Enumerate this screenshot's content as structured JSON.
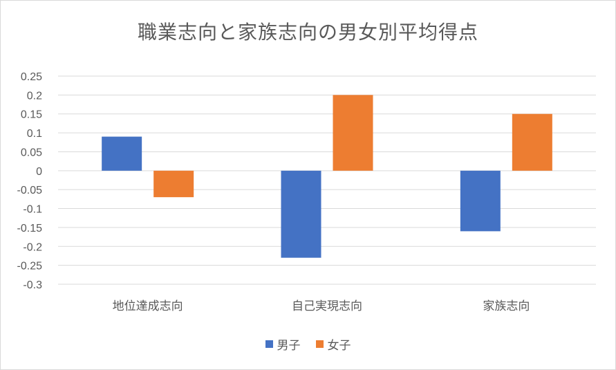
{
  "chart_data": {
    "type": "bar",
    "title": "職業志向と家族志向の男女別平均得点",
    "xlabel": "",
    "ylabel": "",
    "categories": [
      "地位達成志向",
      "自己実現志向",
      "家族志向"
    ],
    "series": [
      {
        "name": "男子",
        "color": "#4472c4",
        "values": [
          0.09,
          -0.23,
          -0.16
        ]
      },
      {
        "name": "女子",
        "color": "#ed7d31",
        "values": [
          -0.07,
          0.2,
          0.15
        ]
      }
    ],
    "ylim": [
      -0.3,
      0.25
    ],
    "yticks": [
      0.25,
      0.2,
      0.15,
      0.1,
      0.05,
      0,
      -0.05,
      -0.1,
      -0.15,
      -0.2,
      -0.25,
      -0.3
    ],
    "ytick_labels": [
      "0.25",
      "0.2",
      "0.15",
      "0.1",
      "0.05",
      "0",
      "-0.05",
      "-0.1",
      "-0.15",
      "-0.2",
      "-0.25",
      "-0.3"
    ],
    "grid": true,
    "legend_position": "bottom"
  }
}
